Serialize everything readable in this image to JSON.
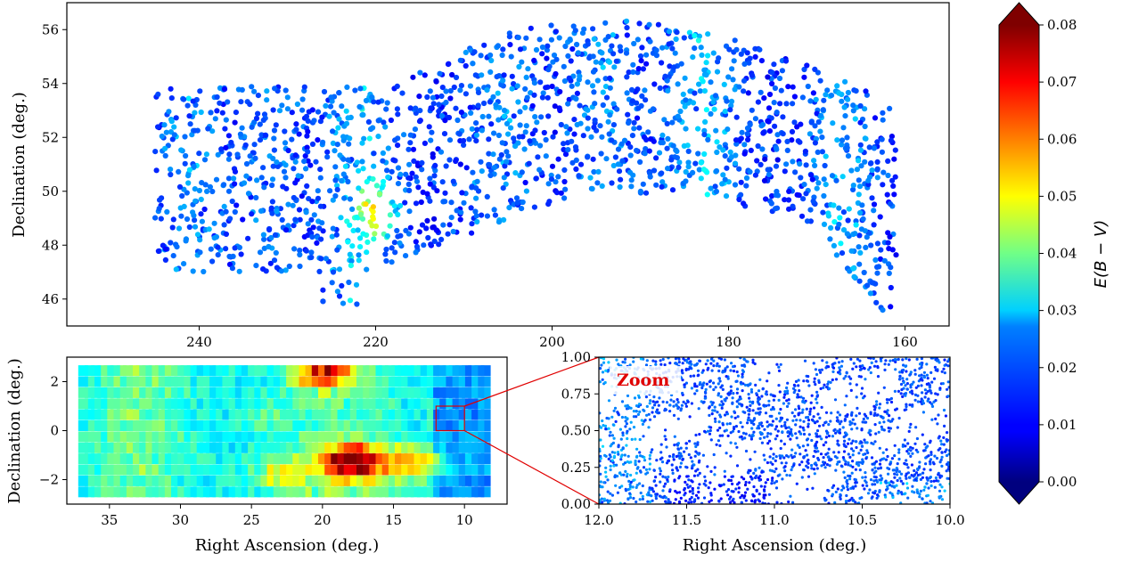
{
  "chart_data": [
    {
      "type": "scatter",
      "panel": "top",
      "xlabel": "",
      "ylabel": "Declination (deg.)",
      "xlim": [
        255,
        155
      ],
      "ylim": [
        45,
        57
      ],
      "xticks": [
        "240",
        "220",
        "200",
        "180",
        "160"
      ],
      "yticks": [
        "46",
        "48",
        "50",
        "52",
        "54",
        "56"
      ],
      "footprint": "curved strip: RA 245 to 161 deg; lower edge from Dec ~47 (RA 245-222) rising to ~50 at RA 200; upper edge ~54 (RA 245-218) rising to ~56.4 at RA 196",
      "color_range_ebv": [
        0.005,
        0.035
      ],
      "hotspots": [
        {
          "ra": 220,
          "dec": 49.2,
          "ebv": 0.045
        }
      ]
    },
    {
      "type": "heatmap",
      "panel": "bottom-left",
      "xlabel": "Right Ascension (deg.)",
      "ylabel": "Declination (deg.)",
      "xlim": [
        38,
        7
      ],
      "ylim": [
        -3,
        3
      ],
      "xticks": [
        "35",
        "30",
        "25",
        "20",
        "15",
        "10"
      ],
      "yticks": [
        "−2",
        "0",
        "2"
      ],
      "extent": {
        "ra": [
          37,
          8.5
        ],
        "dec": [
          -2.5,
          2.5
        ]
      },
      "hotspots": [
        {
          "ra": 18,
          "dec": -1.2,
          "ebv": 0.075
        },
        {
          "ra": 20,
          "dec": 2.4,
          "ebv": 0.07
        },
        {
          "ra": 13.5,
          "dec": -1.3,
          "ebv": 0.055
        },
        {
          "ra": 23,
          "dec": -1.8,
          "ebv": 0.05
        }
      ],
      "zoom_box": {
        "ra": [
          12,
          10
        ],
        "dec": [
          0,
          1
        ]
      }
    },
    {
      "type": "scatter",
      "panel": "bottom-right-zoom",
      "xlabel": "Right Ascension (deg.)",
      "ylabel": "",
      "xlim": [
        12.0,
        10.0
      ],
      "ylim": [
        0.0,
        1.0
      ],
      "xticks": [
        "12.0",
        "11.5",
        "11.0",
        "10.5",
        "10.0"
      ],
      "yticks": [
        "0.00",
        "0.25",
        "0.50",
        "0.75",
        "1.00"
      ],
      "annotation": "Zoom",
      "color_range_ebv": [
        0.008,
        0.03
      ]
    }
  ],
  "colorbar": {
    "label": "E(B − V)",
    "colormap": "jet",
    "vmin": 0.0,
    "vmax": 0.08,
    "ticks": [
      "0.00",
      "0.01",
      "0.02",
      "0.03",
      "0.04",
      "0.05",
      "0.06",
      "0.07",
      "0.08"
    ],
    "extend": "both"
  },
  "colors": {
    "zoom_lines": "#e00000",
    "zoom_text": "#e00000",
    "zoom_box": "#e00000"
  }
}
